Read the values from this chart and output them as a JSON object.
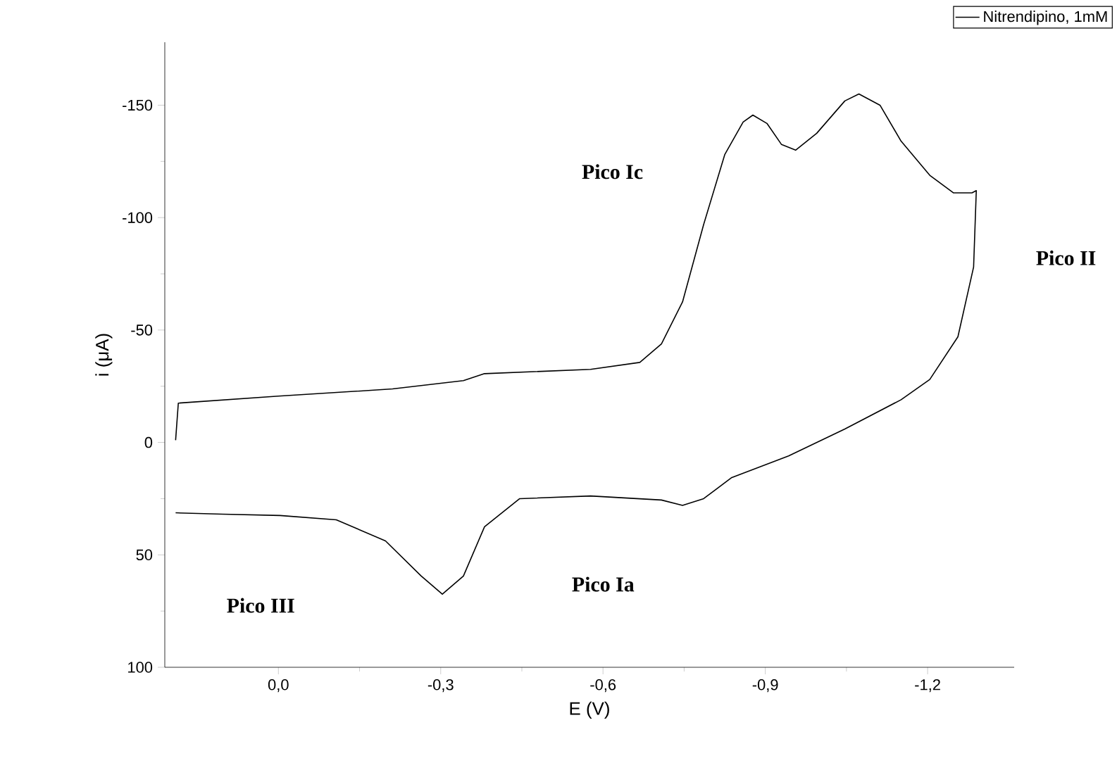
{
  "chart_data": {
    "type": "line",
    "xlabel": "E (V)",
    "ylabel": "i (μA)",
    "x": [
      0.19,
      0.185,
      0.0,
      -0.211,
      -0.342,
      -0.381,
      -0.577,
      -0.668,
      -0.708,
      -0.747,
      -0.786,
      -0.825,
      -0.859,
      -0.877,
      -0.903,
      -0.93,
      -0.956,
      -0.995,
      -1.047,
      -1.073,
      -1.112,
      -1.151,
      -1.204,
      -1.248,
      -1.282,
      -1.29,
      -1.285,
      -1.256,
      -1.204,
      -1.151,
      -1.047,
      -0.943,
      -0.838,
      -0.786,
      -0.747,
      -0.708,
      -0.577,
      -0.446,
      -0.381,
      -0.342,
      -0.303,
      -0.264,
      -0.198,
      -0.107,
      -0.003,
      0.102,
      0.19
    ],
    "series": [
      {
        "name": "Nitrendipino, 1mM",
        "color": "#000000",
        "values": [
          -1,
          -17.5,
          -20.6,
          -23.8,
          -27.5,
          -30.6,
          -32.5,
          -35.6,
          -43.8,
          -62.5,
          -96.9,
          -128,
          -142.5,
          -145.6,
          -141.9,
          -132.5,
          -130,
          -137.5,
          -151.9,
          -155,
          -150,
          -134,
          -118.8,
          -111,
          -111,
          -112,
          -78,
          -47,
          -28,
          -19,
          -6,
          6,
          15.6,
          25,
          28,
          25.6,
          23.8,
          25,
          37.5,
          59.4,
          67.5,
          59.4,
          43.8,
          34.4,
          32.5,
          31.9,
          31.3
        ]
      }
    ],
    "xlim": [
      0.21,
      -1.36
    ],
    "ylim": [
      100,
      -178
    ],
    "xticks": [
      {
        "value": 0,
        "label": "0,0"
      },
      {
        "value": -0.3,
        "label": "-0,3"
      },
      {
        "value": -0.6,
        "label": "-0,6"
      },
      {
        "value": -0.9,
        "label": "-0,9"
      },
      {
        "value": -1.2,
        "label": "-1,2"
      }
    ],
    "yticks": [
      -150,
      -100,
      -50,
      0,
      50,
      100
    ],
    "annotations": [
      "Pico Ic",
      "Pico II",
      "Pico III",
      "Pico Ia"
    ],
    "legend": "top right",
    "grid": false,
    "marker": "none",
    "line_style": "solid"
  }
}
